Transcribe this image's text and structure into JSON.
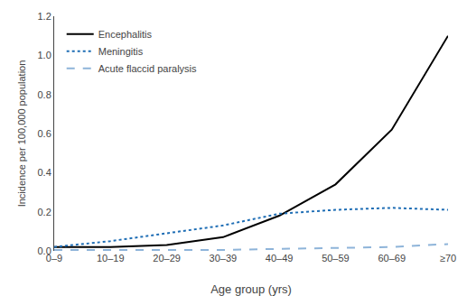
{
  "chart_data": {
    "type": "line",
    "xlabel": "Age group (yrs)",
    "ylabel": "Incidence per 100,000 population",
    "categories": [
      "0–9",
      "10–19",
      "20–29",
      "30–39",
      "40–49",
      "50–59",
      "60–69",
      "≥70"
    ],
    "series": [
      {
        "name": "Encephalitis",
        "color": "#000000",
        "line_style": "solid",
        "values": [
          0.02,
          0.02,
          0.03,
          0.07,
          0.18,
          0.34,
          0.62,
          1.1
        ]
      },
      {
        "name": "Meningitis",
        "color": "#1f6eb5",
        "line_style": "dotted",
        "values": [
          0.02,
          0.05,
          0.09,
          0.13,
          0.19,
          0.21,
          0.22,
          0.21
        ]
      },
      {
        "name": "Acute flaccid paralysis",
        "color": "#8eb4d9",
        "line_style": "dashed",
        "values": [
          0.005,
          0.005,
          0.005,
          0.005,
          0.01,
          0.015,
          0.02,
          0.035
        ]
      }
    ],
    "ylim": [
      0,
      1.2
    ],
    "yticks": [
      {
        "value": 0,
        "label": "0.0"
      },
      0.2,
      0.4,
      0.6,
      0.8,
      {
        "value": 1,
        "label": "1.0"
      },
      1.2
    ],
    "grid": false,
    "legend": "upper left"
  }
}
